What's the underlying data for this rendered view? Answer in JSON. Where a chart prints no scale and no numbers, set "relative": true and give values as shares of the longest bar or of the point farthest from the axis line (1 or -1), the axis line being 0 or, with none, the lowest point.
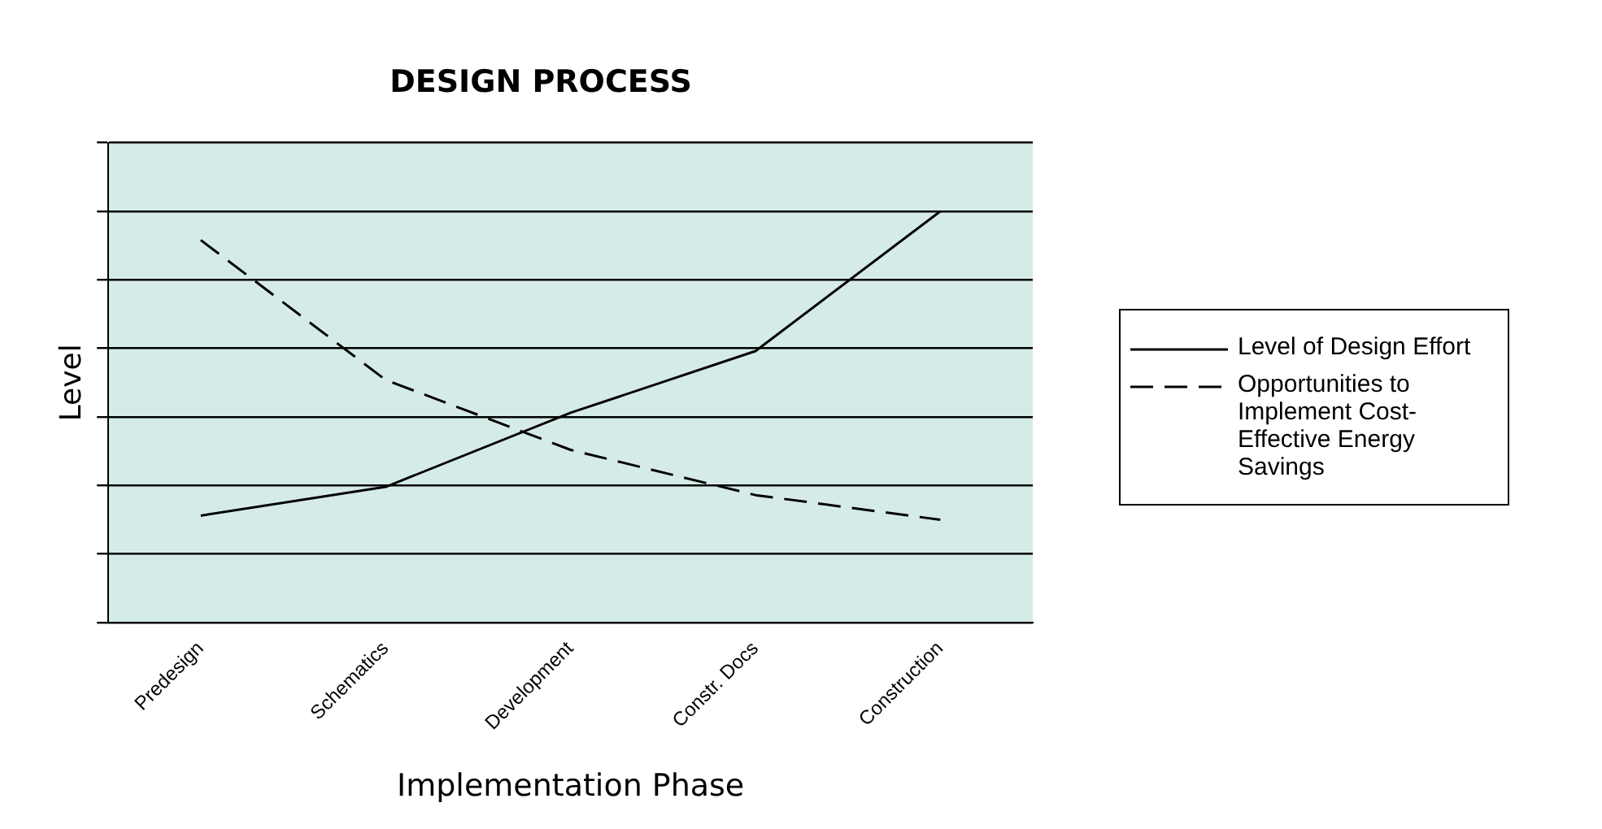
{
  "chart_data": {
    "type": "line",
    "title": "DESIGN PROCESS",
    "xlabel": "Implementation Phase",
    "ylabel": "Level",
    "relative": true,
    "grid": "y",
    "legend": "right",
    "marker": "none",
    "categories": [
      "Predesign",
      "Schematics",
      "Development",
      "Constr. Docs",
      "Construction"
    ],
    "series": [
      {
        "name": "Level of Design Effort",
        "color": "#000000",
        "line_style": "solid",
        "values": [
          0.26,
          0.33,
          0.51,
          0.66,
          1.0
        ]
      },
      {
        "name": "Opportunities to Implement Cost-Effective Energy Savings",
        "color": "#000000",
        "line_style": "dashed",
        "values": [
          0.93,
          0.59,
          0.42,
          0.31,
          0.25
        ]
      }
    ]
  }
}
